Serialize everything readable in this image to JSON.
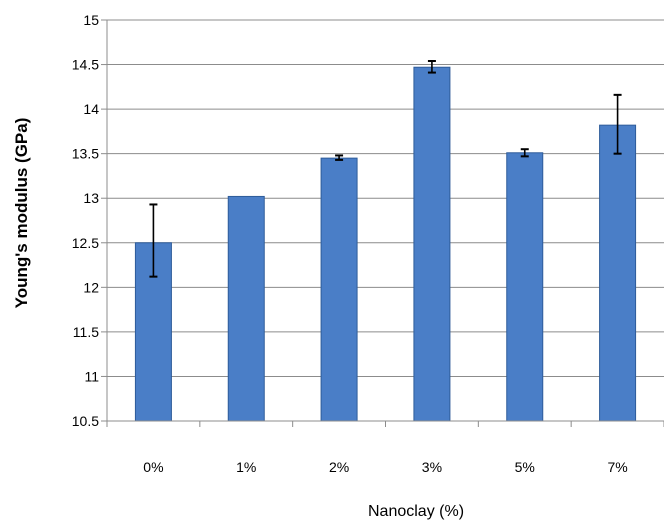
{
  "chart_data": {
    "type": "bar",
    "title": "",
    "xlabel": "Nanoclay (%)",
    "ylabel": "Young's modulus (GPa)",
    "categories": [
      "0%",
      "1%",
      "2%",
      "3%",
      "5%",
      "7%"
    ],
    "values": [
      12.5,
      13.02,
      13.45,
      14.47,
      13.51,
      13.82
    ],
    "error_low": [
      12.12,
      13.02,
      13.43,
      14.41,
      13.47,
      13.5
    ],
    "error_high": [
      12.93,
      13.02,
      13.48,
      14.54,
      13.55,
      14.16
    ],
    "ylim": [
      10.5,
      15
    ],
    "yticks": [
      "10.5",
      "11",
      "11.5",
      "12",
      "12.5",
      "13",
      "13.5",
      "14",
      "14.5",
      "15"
    ],
    "grid": true,
    "legend": "none",
    "colors": {
      "bar_fill": "#4A7EC7",
      "bar_stroke": "#2E5C9A",
      "grid": "#8C8C8C",
      "axis": "#8C8C8C",
      "error_bar": "#000000"
    }
  }
}
